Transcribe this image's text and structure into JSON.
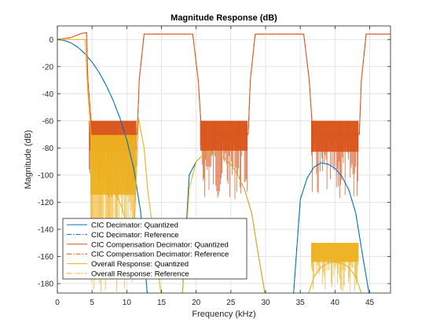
{
  "chart_data": {
    "type": "line",
    "title": "Magnitude Response (dB)",
    "xlabel": "Frequency (kHz)",
    "ylabel": "Magnitude (dB)",
    "xlim": [
      0,
      48
    ],
    "ylim": [
      -187,
      10
    ],
    "x_ticks": [
      0,
      5,
      10,
      15,
      20,
      25,
      30,
      35,
      40,
      45
    ],
    "y_ticks": [
      0,
      -20,
      -40,
      -60,
      -80,
      -100,
      -120,
      -140,
      -160,
      -180
    ],
    "x_tick_labels": [
      "0",
      "5",
      "10",
      "15",
      "20",
      "25",
      "30",
      "35",
      "40",
      "45"
    ],
    "y_tick_labels": [
      "0",
      "-20",
      "-40",
      "-60",
      "-80",
      "-100",
      "-120",
      "-140",
      "-160",
      "-180"
    ],
    "grid": true,
    "legend_position": "bottom-left",
    "series": [
      {
        "name": "CIC Decimator: Quantized",
        "color": "#0072BD",
        "style": "solid",
        "x": [
          0,
          1,
          2,
          3,
          4,
          5,
          6,
          7,
          8,
          9,
          10,
          11,
          12,
          13,
          14,
          15,
          16,
          17,
          18,
          19,
          20,
          21,
          22,
          23,
          24,
          25,
          26,
          27,
          28,
          29,
          30,
          31,
          32,
          33,
          34,
          35,
          36,
          37,
          38,
          39,
          40,
          41,
          42,
          43,
          44,
          45,
          46,
          47,
          48
        ],
        "y": [
          0,
          -0.7,
          -2.6,
          -5.9,
          -10.6,
          -16.7,
          -24.2,
          -33.4,
          -44.5,
          -57.7,
          -73.9,
          -95,
          -127,
          -190,
          -190,
          -190,
          -190,
          -190,
          -190,
          -100,
          -90,
          -85,
          -83,
          -84,
          -87,
          -92,
          -100,
          -111,
          -128,
          -160,
          -190,
          -190,
          -190,
          -190,
          -190,
          -118,
          -102,
          -94,
          -91,
          -92,
          -95,
          -101,
          -111,
          -128,
          -160,
          -190,
          -190,
          -190,
          -190
        ]
      },
      {
        "name": "CIC Decimator: Reference",
        "color": "#0072BD",
        "style": "dashdot",
        "x": [
          0,
          1,
          2,
          3,
          4,
          5,
          6,
          7,
          8,
          9,
          10,
          11,
          12,
          13,
          14,
          15,
          16,
          17,
          18,
          19,
          20,
          21,
          22,
          23,
          24,
          25,
          26,
          27,
          28,
          29,
          30,
          31,
          32,
          33,
          34,
          35,
          36,
          37,
          38,
          39,
          40,
          41,
          42,
          43,
          44,
          45,
          46,
          47,
          48
        ],
        "y": [
          0,
          -0.7,
          -2.6,
          -5.9,
          -10.6,
          -16.7,
          -24.2,
          -33.4,
          -44.5,
          -57.7,
          -73.9,
          -95,
          -127,
          -190,
          -190,
          -190,
          -190,
          -190,
          -190,
          -100,
          -90,
          -85,
          -83,
          -84,
          -87,
          -92,
          -100,
          -111,
          -128,
          -160,
          -190,
          -190,
          -190,
          -190,
          -190,
          -118,
          -102,
          -94,
          -91,
          -92,
          -95,
          -101,
          -111,
          -128,
          -160,
          -190,
          -190,
          -190,
          -190
        ]
      },
      {
        "name": "CIC Compensation Decimator: Quantized",
        "color": "#D95319",
        "style": "solid",
        "x": [
          0,
          2,
          3.5,
          4.2,
          4.4,
          5,
          11.5,
          11.8,
          12.5,
          19.5,
          20.3,
          20.8,
          27.5,
          27.8,
          28.5,
          35.5,
          36.3,
          36.8,
          43.5,
          43.8,
          44.5,
          48
        ],
        "y": [
          0,
          1.5,
          4.5,
          5,
          -30,
          -70,
          -70,
          -30,
          4,
          4,
          -30,
          -70,
          -70,
          -30,
          4,
          4,
          -30,
          -70,
          -70,
          -30,
          4,
          4
        ]
      },
      {
        "name": "CIC Compensation Decimator: Reference",
        "color": "#D95319",
        "style": "dashdot",
        "x": [
          0,
          2,
          3.5,
          4.2,
          4.4,
          5,
          11.5,
          11.8,
          12.5,
          19.5,
          20.3,
          20.8,
          27.5,
          27.8,
          28.5,
          35.5,
          36.3,
          36.8,
          43.5,
          43.8,
          44.5,
          48
        ],
        "y": [
          0,
          1.5,
          4.5,
          5,
          -30,
          -70,
          -70,
          -30,
          4,
          4,
          -30,
          -70,
          -70,
          -30,
          4,
          4,
          -30,
          -70,
          -70,
          -30,
          4,
          4
        ]
      },
      {
        "name": "Overall Response: Quantized",
        "color": "#EDB120",
        "style": "solid",
        "x": [
          0,
          1,
          2,
          3,
          4,
          4.4,
          5,
          6,
          7,
          8,
          9,
          10,
          11,
          11.7,
          12.5,
          13,
          14,
          15,
          16,
          17,
          18,
          19,
          20,
          21,
          22,
          23,
          24,
          25,
          26,
          27,
          28,
          29,
          30,
          31,
          32,
          33,
          34,
          35,
          36,
          37,
          38,
          39,
          40,
          41,
          42,
          43,
          44,
          45,
          46,
          47,
          48
        ],
        "y": [
          0,
          0,
          0,
          0,
          0,
          -40,
          -80,
          -90,
          -100,
          -110,
          -120,
          -135,
          -150,
          -58,
          -80,
          -110,
          -150,
          -190,
          -190,
          -190,
          -190,
          -110,
          -90,
          -85,
          -83,
          -84,
          -87,
          -92,
          -100,
          -111,
          -128,
          -160,
          -190,
          -190,
          -190,
          -190,
          -190,
          -190,
          -190,
          -175,
          -168,
          -165,
          -164,
          -165,
          -168,
          -175,
          -190,
          -190,
          -190,
          -190,
          -190
        ]
      },
      {
        "name": "Overall Response: Reference",
        "color": "#EDB120",
        "style": "dashdot",
        "x": [
          0,
          1,
          2,
          3,
          4,
          4.4,
          5,
          6,
          7,
          8,
          9,
          10,
          11,
          11.7,
          12.5,
          13,
          14,
          15,
          16,
          17,
          18,
          19,
          20,
          21,
          22,
          23,
          24,
          25,
          26,
          27,
          28,
          29,
          30,
          31,
          32,
          33,
          34,
          35,
          36,
          37,
          38,
          39,
          40,
          41,
          42,
          43,
          44,
          45,
          46,
          47,
          48
        ],
        "y": [
          0,
          0,
          0,
          0,
          0,
          -40,
          -80,
          -90,
          -100,
          -110,
          -120,
          -135,
          -150,
          -58,
          -80,
          -110,
          -150,
          -190,
          -190,
          -190,
          -190,
          -110,
          -90,
          -85,
          -83,
          -84,
          -87,
          -92,
          -100,
          -111,
          -128,
          -160,
          -190,
          -190,
          -190,
          -190,
          -190,
          -190,
          -190,
          -175,
          -168,
          -165,
          -164,
          -165,
          -168,
          -175,
          -190,
          -190,
          -190,
          -190,
          -190
        ]
      }
    ],
    "ripple_bands": [
      {
        "series": "CIC Compensation Decimator: Quantized",
        "color": "#D95319",
        "x_range": [
          4.6,
          11.4
        ],
        "upper": -60,
        "lower": -118
      },
      {
        "series": "CIC Compensation Decimator: Quantized",
        "color": "#D95319",
        "x_range": [
          20.6,
          27.4
        ],
        "upper": -60,
        "lower": -118
      },
      {
        "series": "CIC Compensation Decimator: Quantized",
        "color": "#D95319",
        "x_range": [
          36.6,
          43.4
        ],
        "upper": -60,
        "lower": -120
      },
      {
        "series": "Overall Response: Quantized",
        "color": "#EDB120",
        "x_range": [
          4.8,
          11.3
        ],
        "upper": -70,
        "lower": -187
      },
      {
        "series": "Overall Response: Quantized",
        "color": "#EDB120",
        "x_range": [
          36.6,
          43.4
        ],
        "upper": -150,
        "lower": -187
      }
    ]
  }
}
